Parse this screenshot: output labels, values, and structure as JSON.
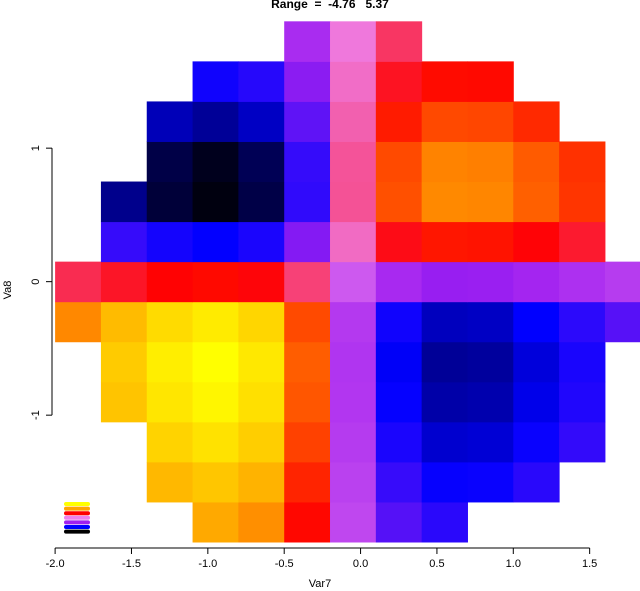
{
  "chart_data": {
    "type": "heatmap",
    "title": "Range  =  -4.76   5.37",
    "x_label": "Var7",
    "y_label": "Va8",
    "xlim": [
      -2.04,
      1.81
    ],
    "ylim": [
      -1.98,
      1.9
    ],
    "xticks": [
      {
        "value": -2,
        "label": "-2.0"
      },
      {
        "value": -1.5,
        "label": "-1.5"
      },
      {
        "value": -1,
        "label": "-1.0"
      },
      {
        "value": -0.5,
        "label": "-0.5"
      },
      {
        "value": 0,
        "label": "0.0"
      },
      {
        "value": 0.5,
        "label": "0.5"
      },
      {
        "value": 1,
        "label": "1.0"
      },
      {
        "value": 1.5,
        "label": "1.5"
      }
    ],
    "yticks": [
      -1,
      0,
      1
    ],
    "zlim": [
      -4.76,
      5.37
    ],
    "colors": [
      "#000000",
      "#0000ff",
      "#a020f0",
      "#ee82ee",
      "#ff0000",
      "#ffa500",
      "#ffff00"
    ],
    "x": [
      -1.85,
      -1.55,
      -1.25,
      -0.95,
      -0.65,
      -0.35,
      -0.05,
      0.25,
      0.55,
      0.85,
      1.15,
      1.45,
      1.75
    ],
    "y": [
      -1.8,
      -1.5,
      -1.2,
      -0.9,
      -0.6,
      -0.3,
      0,
      0.3,
      0.6,
      0.9,
      1.2,
      1.5,
      1.8
    ],
    "z": [
      [
        null,
        null,
        null,
        3.76,
        3.46,
        2.07,
        -0.72,
        -2.18,
        -2.63,
        null,
        null,
        null,
        null
      ],
      [
        null,
        null,
        4.04,
        4.3,
        3.95,
        2.36,
        -0.82,
        -2.49,
        -3.01,
        -2.98,
        -2.64,
        null,
        null
      ],
      [
        null,
        null,
        4.54,
        4.83,
        4.45,
        2.66,
        -0.92,
        -2.8,
        -3.39,
        -3.35,
        -2.98,
        -2.53,
        null
      ],
      [
        null,
        4.27,
        4.9,
        5.21,
        4.79,
        2.87,
        -1.0,
        -3.02,
        -3.65,
        -3.61,
        -3.21,
        -2.73,
        null
      ],
      [
        null,
        4.4,
        5.05,
        5.37,
        4.94,
        2.95,
        -1.03,
        -3.12,
        -3.76,
        -3.72,
        -3.31,
        -2.81,
        null
      ],
      [
        3.39,
        4.1,
        4.69,
        4.99,
        4.6,
        2.75,
        -0.95,
        -2.9,
        -3.5,
        -3.46,
        -3.07,
        -2.61,
        -2.15
      ],
      [
        1.42,
        1.72,
        1.97,
        2.09,
        1.93,
        1.15,
        -0.4,
        -1.22,
        -1.47,
        -1.45,
        -1.29,
        -1.1,
        -0.9
      ],
      [
        null,
        -2.5,
        -2.86,
        -3.05,
        -2.8,
        -1.68,
        0.61,
        1.84,
        2.22,
        2.19,
        1.95,
        1.66,
        null
      ],
      [
        null,
        -3.83,
        -4.38,
        -4.66,
        -4.29,
        -2.57,
        0.93,
        2.81,
        3.4,
        3.36,
        2.98,
        2.54,
        null
      ],
      [
        null,
        null,
        -4.29,
        -4.57,
        -4.2,
        -2.51,
        0.91,
        2.75,
        3.33,
        3.29,
        2.92,
        2.49,
        null
      ],
      [
        null,
        null,
        -3.54,
        -3.76,
        -3.46,
        -2.07,
        0.75,
        2.27,
        2.74,
        2.71,
        2.41,
        null,
        null
      ],
      [
        null,
        null,
        null,
        -2.9,
        -2.67,
        -1.6,
        0.58,
        1.75,
        2.11,
        2.09,
        null,
        null,
        null
      ],
      [
        null,
        null,
        null,
        null,
        null,
        -1.18,
        0.43,
        1.29,
        null,
        null,
        null,
        null,
        null
      ]
    ]
  }
}
